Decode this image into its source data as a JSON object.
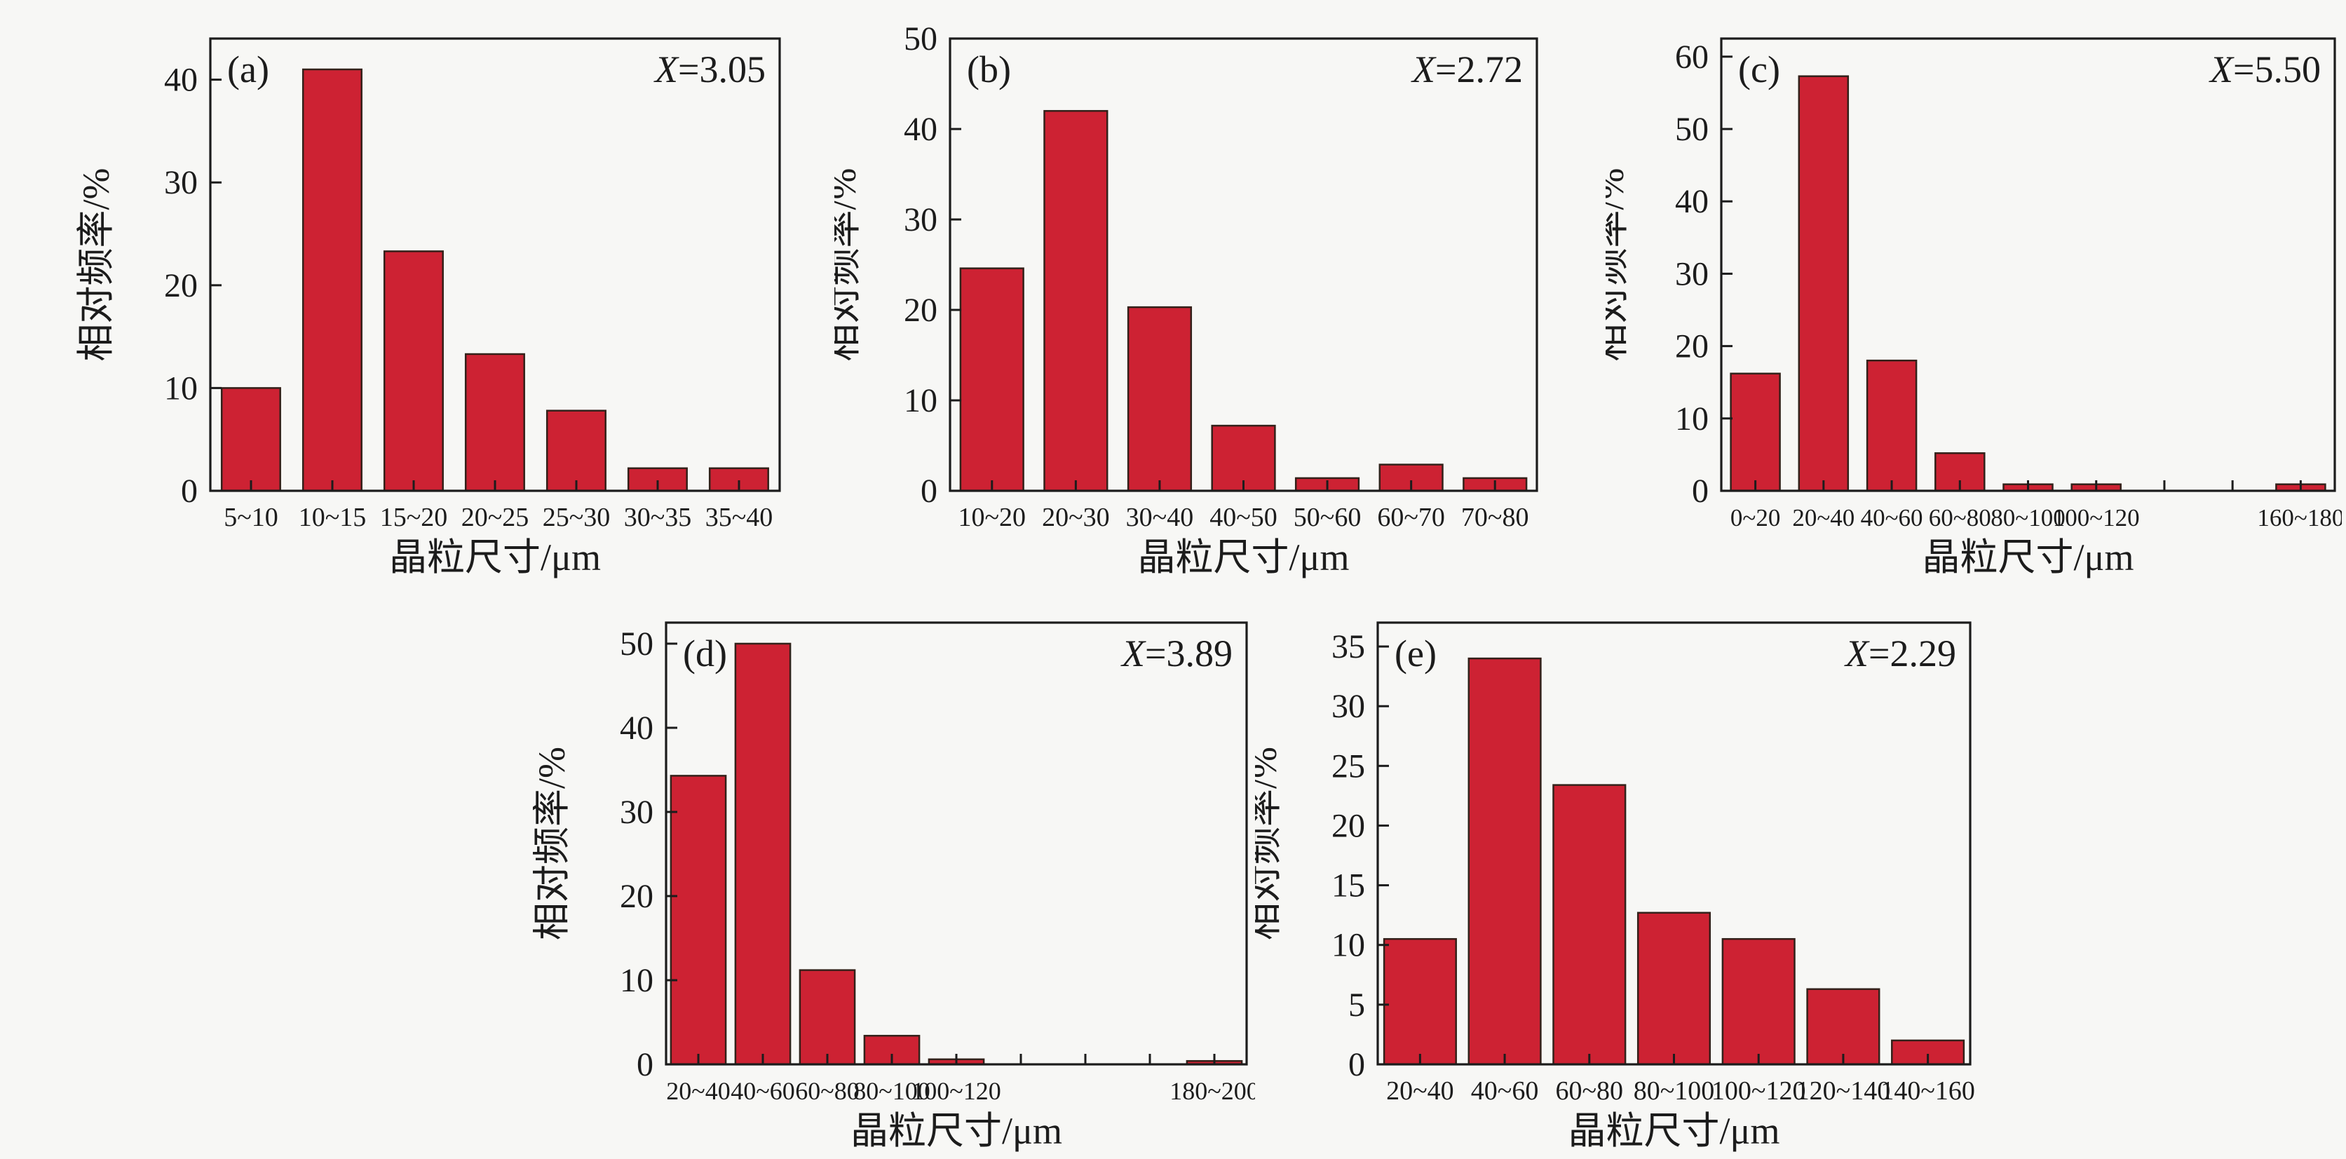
{
  "figure": {
    "background": "#f7f7f5",
    "axis_color": "#1c1c1c",
    "bar_fill": "#cd2233",
    "bar_edge": "#33211a",
    "text_color": "#1c1c1c",
    "ylabel": "相对频率/%",
    "xlabel": "晶粒尺寸/μm"
  },
  "chart_data": [
    {
      "type": "bar",
      "panel_label": "(a)",
      "annotation": {
        "var": "X",
        "rest": "=3.05"
      },
      "categories": [
        "5~10",
        "10~15",
        "15~20",
        "20~25",
        "25~30",
        "30~35",
        "35~40"
      ],
      "values": [
        10,
        41,
        23.3,
        13.3,
        7.8,
        2.2,
        2.2
      ],
      "xlabel": "晶粒尺寸/μm",
      "ylabel": "相对频率/%",
      "ylim": [
        0,
        44
      ],
      "yticks": [
        0,
        10,
        20,
        30,
        40
      ],
      "grid": false,
      "legend": "none"
    },
    {
      "type": "bar",
      "panel_label": "(b)",
      "annotation": {
        "var": "X",
        "rest": "=2.72"
      },
      "categories": [
        "10~20",
        "20~30",
        "30~40",
        "40~50",
        "50~60",
        "60~70",
        "70~80"
      ],
      "values": [
        24.6,
        42,
        20.3,
        7.2,
        1.4,
        2.9,
        1.4
      ],
      "xlabel": "晶粒尺寸/μm",
      "ylabel": "相对频率/%",
      "ylim": [
        0,
        50
      ],
      "yticks": [
        0,
        10,
        20,
        30,
        40,
        50
      ],
      "grid": false,
      "legend": "none"
    },
    {
      "type": "bar",
      "panel_label": "(c)",
      "annotation": {
        "var": "X",
        "rest": "=5.50"
      },
      "categories": [
        "0~20",
        "20~40",
        "40~60",
        "60~80",
        "80~100",
        "100~120",
        "",
        "",
        "160~180"
      ],
      "values": [
        16.2,
        57.3,
        18,
        5.2,
        0.9,
        0.9,
        0,
        0,
        0.9
      ],
      "xlabel": "晶粒尺寸/μm",
      "ylabel": "相对频率/%",
      "ylim": [
        0,
        62.5
      ],
      "yticks": [
        0,
        10,
        20,
        30,
        40,
        50,
        60
      ],
      "grid": false,
      "legend": "none"
    },
    {
      "type": "bar",
      "panel_label": "(d)",
      "annotation": {
        "var": "X",
        "rest": "=3.89"
      },
      "categories": [
        "20~40",
        "40~60",
        "60~80",
        "80~100",
        "100~120",
        "",
        "",
        "",
        "180~200"
      ],
      "values": [
        34.3,
        50,
        11.2,
        3.4,
        0.6,
        0,
        0,
        0,
        0.4
      ],
      "xlabel": "晶粒尺寸/μm",
      "ylabel": "相对频率/%",
      "ylim": [
        0,
        52.5
      ],
      "yticks": [
        0,
        10,
        20,
        30,
        40,
        50
      ],
      "grid": false,
      "legend": "none"
    },
    {
      "type": "bar",
      "panel_label": "(e)",
      "annotation": {
        "var": "X",
        "rest": "=2.29"
      },
      "categories": [
        "20~40",
        "40~60",
        "60~80",
        "80~100",
        "100~120",
        "120~140",
        "140~160"
      ],
      "values": [
        10.5,
        34,
        23.4,
        12.7,
        10.5,
        6.3,
        2
      ],
      "xlabel": "晶粒尺寸/μm",
      "ylabel": "相对频率/%",
      "ylim": [
        0,
        37
      ],
      "yticks": [
        0,
        5,
        10,
        15,
        20,
        25,
        30,
        35
      ],
      "grid": false,
      "legend": "none"
    }
  ]
}
